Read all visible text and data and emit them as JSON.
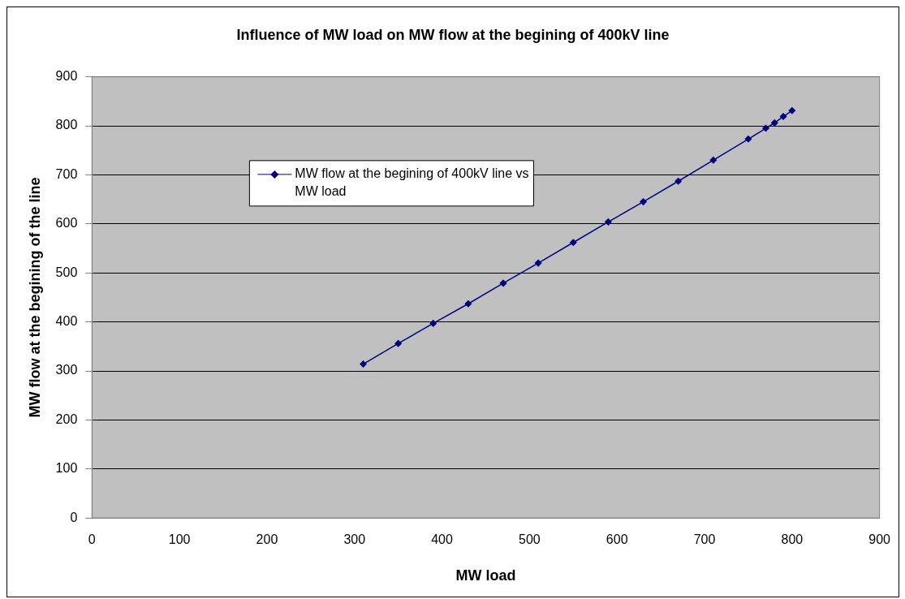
{
  "chart_data": {
    "type": "line",
    "title": "Influence of MW load on MW flow at the begining of 400kV line",
    "xlabel": "MW load",
    "ylabel": "MW flow at the begining of the line",
    "series": [
      {
        "name": "MW flow at the begining of 400kV line vs MW load",
        "color": "#000080",
        "x": [
          310,
          350,
          390,
          430,
          470,
          510,
          550,
          590,
          630,
          670,
          710,
          750,
          770,
          780,
          790,
          800
        ],
        "values": [
          314,
          356,
          397,
          437,
          479,
          520,
          562,
          604,
          645,
          687,
          730,
          773,
          795,
          806,
          819,
          831
        ]
      }
    ],
    "xlim": [
      0,
      900
    ],
    "xticks": [
      0,
      100,
      200,
      300,
      400,
      500,
      600,
      700,
      800,
      900
    ],
    "ylim": [
      0,
      900
    ],
    "yticks": [
      0,
      100,
      200,
      300,
      400,
      500,
      600,
      700,
      800,
      900
    ],
    "grid": "y",
    "legend": "top left",
    "marker": "diamond",
    "line_style": "solid"
  }
}
